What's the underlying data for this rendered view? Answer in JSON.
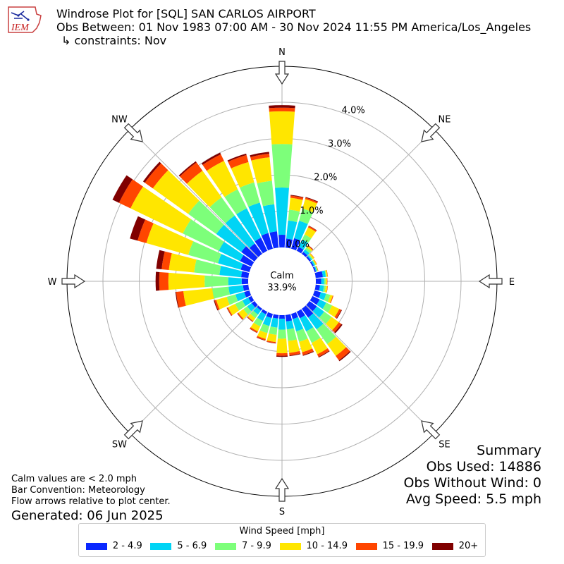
{
  "header": {
    "logo_text": "IEM",
    "title": "Windrose Plot for [SQL] SAN CARLOS AIRPORT",
    "obs_between": "Obs Between: 01 Nov 1983 07:00 AM - 30 Nov 2024 11:55 PM America/Los_Angeles",
    "constraints": "↳ constraints: Nov"
  },
  "notes": {
    "calm_values": "Calm values are < 2.0 mph",
    "bar_convention": "Bar Convention: Meteorology",
    "flow_arrows": "Flow arrows relative to plot center.",
    "generated": "Generated: 06 Jun 2025"
  },
  "summary": {
    "title": "Summary",
    "obs_used": "Obs Used: 14886",
    "obs_without_wind": "Obs Without Wind: 0",
    "avg_speed": "Avg Speed: 5.5 mph"
  },
  "legend": {
    "title": "Wind Speed [mph]",
    "items": [
      {
        "label": "2 - 4.9",
        "color": "#0a28ff"
      },
      {
        "label": "5 - 6.9",
        "color": "#00d4f5"
      },
      {
        "label": "7 - 9.9",
        "color": "#7dff7a"
      },
      {
        "label": "10 - 14.9",
        "color": "#ffe600"
      },
      {
        "label": "15 - 19.9",
        "color": "#ff4500"
      },
      {
        "label": "20+",
        "color": "#800000"
      }
    ]
  },
  "chart_data": {
    "type": "windrose",
    "calm_label": "Calm",
    "calm_value": "33.9%",
    "directions_labels": [
      "N",
      "NE",
      "E",
      "SE",
      "S",
      "SW",
      "W",
      "NW"
    ],
    "radial_ticks": [
      "0.0%",
      "1.0%",
      "2.0%",
      "3.0%",
      "4.0%"
    ],
    "radial_tick_values": [
      0,
      1,
      2,
      3,
      4
    ],
    "speed_bins": [
      "2 - 4.9",
      "5 - 6.9",
      "7 - 9.9",
      "10 - 14.9",
      "15 - 19.9",
      "20+"
    ],
    "bins_deg": [
      0,
      10,
      20,
      30,
      40,
      50,
      60,
      70,
      80,
      90,
      100,
      110,
      120,
      130,
      140,
      150,
      160,
      170,
      180,
      190,
      200,
      210,
      220,
      230,
      240,
      250,
      260,
      270,
      280,
      290,
      300,
      310,
      320,
      330,
      340,
      350
    ],
    "cumulative_pct": [
      [
        0.35,
        1.65,
        2.85,
        3.75,
        3.85,
        3.92
      ],
      [
        0.25,
        0.75,
        1.05,
        1.38,
        1.44,
        1.46
      ],
      [
        0.3,
        0.8,
        1.15,
        1.42,
        1.46,
        1.48
      ],
      [
        0.12,
        0.35,
        0.5,
        0.72,
        0.76,
        0.77
      ],
      [
        0.07,
        0.15,
        0.22,
        0.27,
        0.29,
        0.3
      ],
      [
        0.05,
        0.09,
        0.12,
        0.16,
        0.17,
        0.17
      ],
      [
        0.04,
        0.08,
        0.1,
        0.13,
        0.14,
        0.14
      ],
      [
        0.04,
        0.07,
        0.09,
        0.1,
        0.11,
        0.11
      ],
      [
        0.2,
        0.28,
        0.3,
        0.33,
        0.34,
        0.34
      ],
      [
        0.15,
        0.23,
        0.27,
        0.31,
        0.32,
        0.32
      ],
      [
        0.12,
        0.23,
        0.28,
        0.33,
        0.34,
        0.34
      ],
      [
        0.18,
        0.33,
        0.45,
        0.52,
        0.54,
        0.54
      ],
      [
        0.22,
        0.42,
        0.6,
        0.82,
        0.88,
        0.9
      ],
      [
        0.25,
        0.5,
        0.75,
        1.0,
        1.08,
        1.12
      ],
      [
        0.3,
        0.7,
        1.2,
        1.6,
        1.75,
        1.78
      ],
      [
        0.2,
        0.6,
        0.95,
        1.3,
        1.38,
        1.4
      ],
      [
        0.15,
        0.5,
        0.8,
        1.1,
        1.18,
        1.2
      ],
      [
        0.18,
        0.4,
        0.72,
        1.05,
        1.12,
        1.14
      ],
      [
        0.1,
        0.4,
        0.65,
        1.05,
        1.12,
        1.15
      ],
      [
        0.1,
        0.35,
        0.55,
        0.75,
        0.78,
        0.79
      ],
      [
        0.12,
        0.35,
        0.55,
        0.72,
        0.76,
        0.77
      ],
      [
        0.08,
        0.28,
        0.45,
        0.6,
        0.64,
        0.65
      ],
      [
        0.06,
        0.2,
        0.32,
        0.42,
        0.44,
        0.45
      ],
      [
        0.1,
        0.25,
        0.38,
        0.55,
        0.58,
        0.59
      ],
      [
        0.1,
        0.28,
        0.5,
        0.72,
        0.75,
        0.76
      ],
      [
        0.15,
        0.4,
        0.65,
        0.95,
        1.0,
        1.02
      ],
      [
        0.15,
        0.55,
        1.0,
        1.8,
        2.0,
        2.02
      ],
      [
        0.18,
        0.55,
        1.2,
        2.2,
        2.45,
        2.55
      ],
      [
        0.2,
        0.8,
        1.5,
        2.2,
        2.4,
        2.55
      ],
      [
        0.25,
        0.9,
        1.75,
        2.95,
        3.2,
        3.42
      ],
      [
        0.35,
        1.0,
        2.1,
        3.7,
        4.05,
        4.25
      ],
      [
        0.45,
        1.3,
        2.25,
        3.45,
        3.72,
        3.78
      ],
      [
        0.35,
        1.3,
        1.92,
        2.82,
        3.1,
        3.14
      ],
      [
        0.4,
        1.3,
        1.88,
        2.75,
        2.95,
        3.0
      ],
      [
        0.45,
        1.32,
        1.9,
        2.48,
        2.68,
        2.72
      ],
      [
        0.45,
        1.2,
        1.85,
        2.5,
        2.6,
        2.65
      ]
    ]
  }
}
